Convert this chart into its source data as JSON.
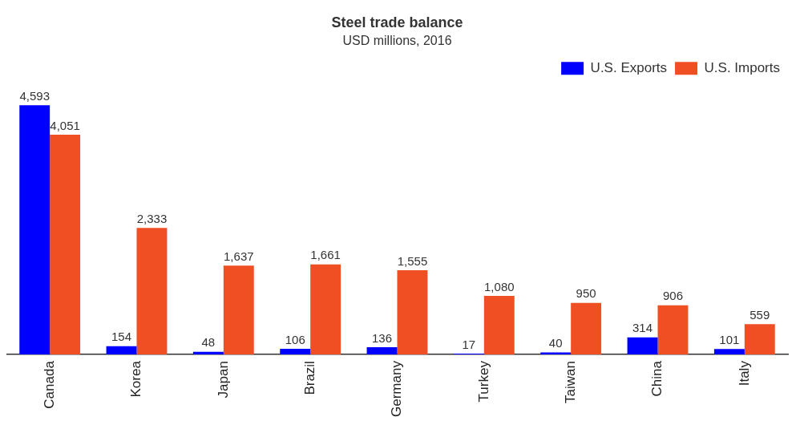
{
  "chart_data": {
    "type": "bar",
    "title": "Steel trade balance",
    "subtitle": "USD millions, 2016",
    "categories": [
      "Canada",
      "Korea",
      "Japan",
      "Brazil",
      "Germany",
      "Turkey",
      "Taiwan",
      "China",
      "Italy"
    ],
    "series": [
      {
        "name": "U.S. Exports",
        "color": "#0000ff",
        "values": [
          4593,
          154,
          48,
          106,
          136,
          17,
          40,
          314,
          101
        ],
        "value_labels": [
          "4,593",
          "154",
          "48",
          "106",
          "136",
          "17",
          "40",
          "314",
          "101"
        ]
      },
      {
        "name": "U.S. Imports",
        "color": "#f04e23",
        "values": [
          4051,
          2333,
          1637,
          1661,
          1555,
          1080,
          950,
          906,
          559
        ],
        "value_labels": [
          "4,051",
          "2,333",
          "1,637",
          "1,661",
          "1,555",
          "1,080",
          "950",
          "906",
          "559"
        ]
      }
    ],
    "legend": "top right",
    "grid": false,
    "tick_labels": "x"
  }
}
